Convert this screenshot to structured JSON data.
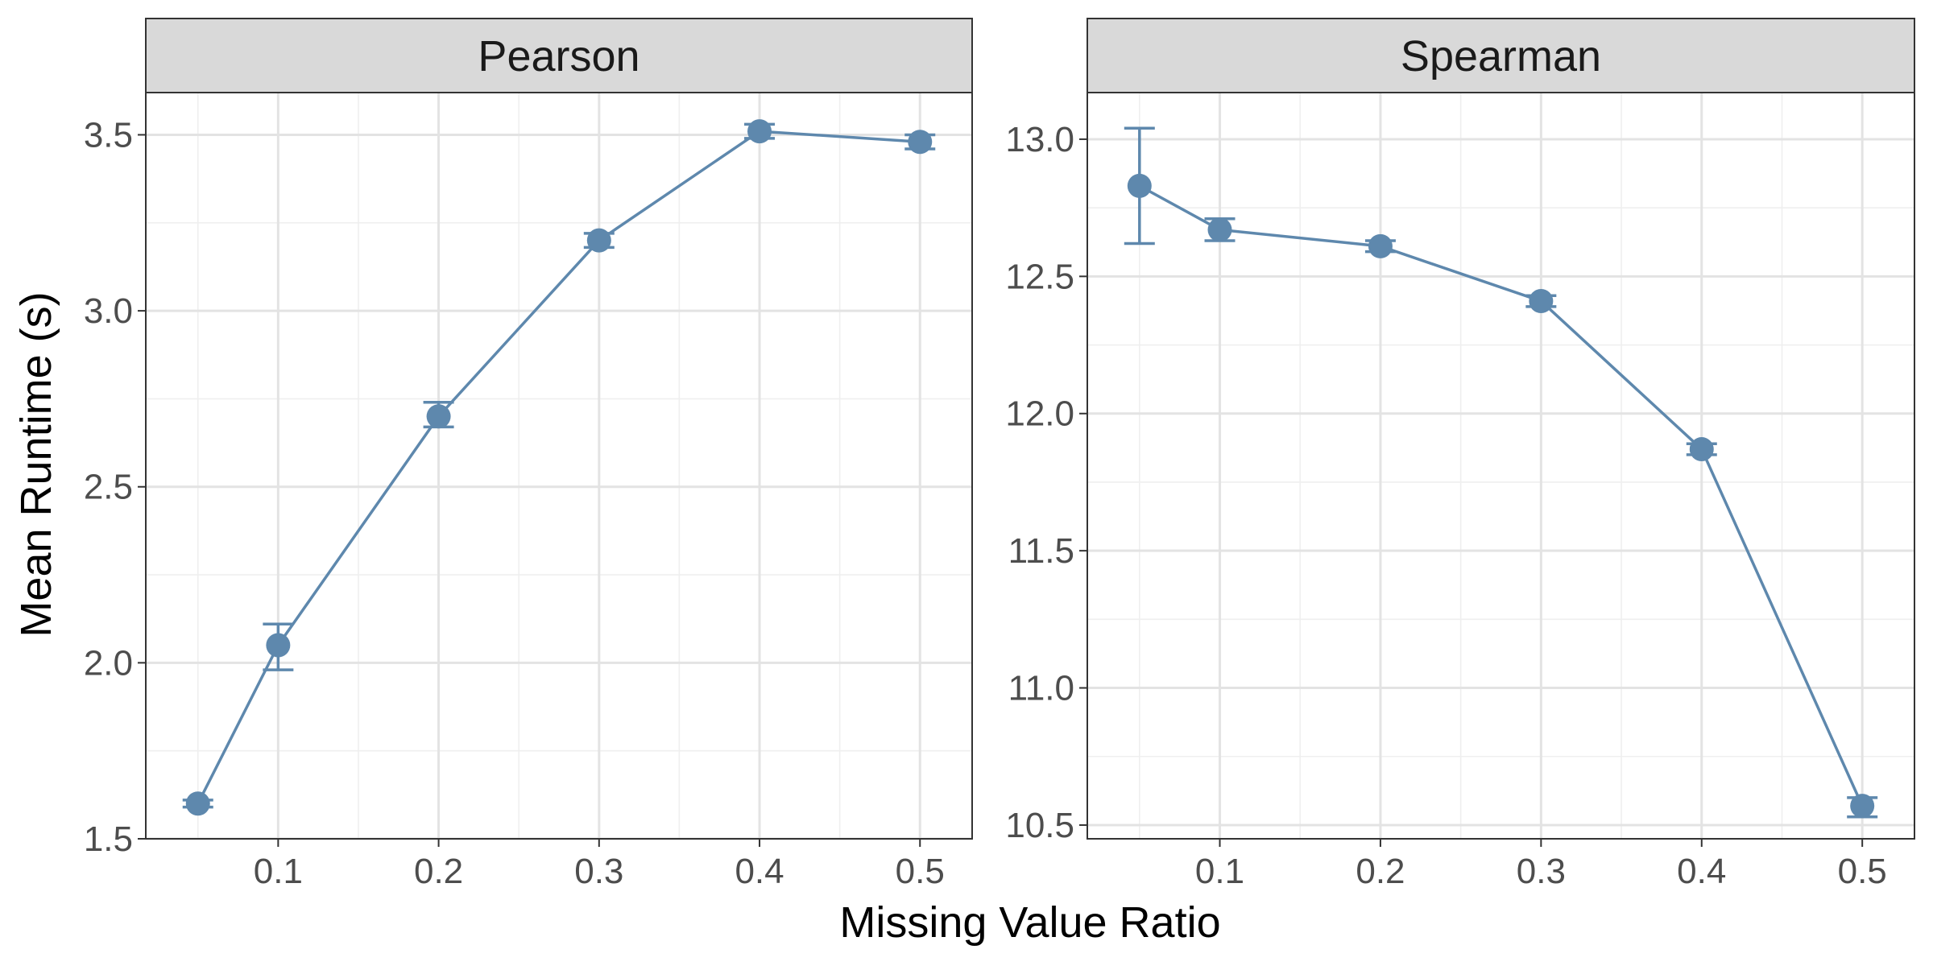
{
  "figure": {
    "xlabel": "Missing Value Ratio",
    "ylabel": "Mean Runtime (s)"
  },
  "colors": {
    "series": "#5e88ad",
    "strip_background": "#d9d9d9"
  },
  "chart_data": [
    {
      "type": "line",
      "panel": "Pearson",
      "title": "Pearson",
      "xlabel": "Missing Value Ratio",
      "ylabel": "Mean Runtime (s)",
      "x": [
        0.05,
        0.1,
        0.2,
        0.3,
        0.4,
        0.5
      ],
      "series": [
        {
          "values": [
            1.6,
            2.05,
            2.7,
            3.2,
            3.51,
            3.48
          ],
          "error_low": [
            1.59,
            1.98,
            2.67,
            3.18,
            3.49,
            3.46
          ],
          "error_high": [
            1.61,
            2.11,
            2.74,
            3.22,
            3.53,
            3.5
          ]
        }
      ],
      "xlim": [
        0.0175,
        0.5325
      ],
      "ylim": [
        1.5,
        3.62
      ],
      "xticks": [
        0.1,
        0.2,
        0.3,
        0.4,
        0.5
      ],
      "xtick_labels": [
        "0.1",
        "0.2",
        "0.3",
        "0.4",
        "0.5"
      ],
      "yticks": [
        1.5,
        2.0,
        2.5,
        3.0,
        3.5
      ],
      "ytick_labels": [
        "1.5",
        "2.0",
        "2.5",
        "3.0",
        "3.5"
      ],
      "grid": true,
      "markers": true,
      "error_bars": true
    },
    {
      "type": "line",
      "panel": "Spearman",
      "title": "Spearman",
      "xlabel": "Missing Value Ratio",
      "ylabel": "Mean Runtime (s)",
      "x": [
        0.05,
        0.1,
        0.2,
        0.3,
        0.4,
        0.5
      ],
      "series": [
        {
          "values": [
            12.83,
            12.67,
            12.61,
            12.41,
            11.87,
            10.57
          ],
          "error_low": [
            12.62,
            12.63,
            12.59,
            12.39,
            11.85,
            10.53
          ],
          "error_high": [
            13.04,
            12.71,
            12.63,
            12.43,
            11.89,
            10.6
          ]
        }
      ],
      "xlim": [
        0.0175,
        0.5325
      ],
      "ylim": [
        10.45,
        13.17
      ],
      "xticks": [
        0.1,
        0.2,
        0.3,
        0.4,
        0.5
      ],
      "xtick_labels": [
        "0.1",
        "0.2",
        "0.3",
        "0.4",
        "0.5"
      ],
      "yticks": [
        10.5,
        11.0,
        11.5,
        12.0,
        12.5,
        13.0
      ],
      "ytick_labels": [
        "10.5",
        "11.0",
        "11.5",
        "12.0",
        "12.5",
        "13.0"
      ],
      "grid": true,
      "markers": true,
      "error_bars": true
    }
  ]
}
